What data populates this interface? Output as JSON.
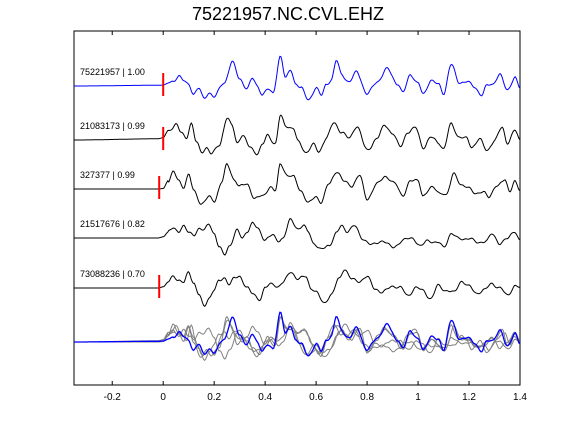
{
  "chart_data": {
    "type": "line",
    "title": "75221957.NC.CVL.EHZ",
    "xlim": [
      -0.35,
      1.4
    ],
    "xticks": [
      -0.2,
      0,
      0.2,
      0.4,
      0.6,
      0.8,
      1,
      1.2,
      1.4
    ],
    "xtick_labels": [
      "-0.2",
      "0",
      "0.2",
      "0.4",
      "0.6",
      "0.8",
      "1",
      "1.2",
      "1.4"
    ],
    "grid": false,
    "pick_time": 0,
    "colors": {
      "reference": "#0000ff",
      "trace": "#000000",
      "overlay": "#808080",
      "pick": "#ff0000"
    },
    "traces": [
      {
        "label": "75221957 | 1.00",
        "color": "reference",
        "pick": true,
        "keypoints": [
          [
            -0.35,
            0
          ],
          [
            -0.02,
            0.03
          ],
          [
            0,
            0.04
          ],
          [
            0.02,
            0.12
          ],
          [
            0.04,
            0.2
          ],
          [
            0.06,
            0.45
          ],
          [
            0.08,
            0.2
          ],
          [
            0.1,
            0.05
          ],
          [
            0.12,
            -0.3
          ],
          [
            0.14,
            -0.1
          ],
          [
            0.16,
            -0.55
          ],
          [
            0.18,
            -0.25
          ],
          [
            0.2,
            -0.45
          ],
          [
            0.24,
            0.15
          ],
          [
            0.27,
            1.0
          ],
          [
            0.3,
            0.3
          ],
          [
            0.33,
            -0.1
          ],
          [
            0.35,
            0.3
          ],
          [
            0.37,
            0.0
          ],
          [
            0.39,
            -0.35
          ],
          [
            0.41,
            -0.15
          ],
          [
            0.43,
            -0.3
          ],
          [
            0.46,
            1.25
          ],
          [
            0.48,
            0.3
          ],
          [
            0.5,
            0.7
          ],
          [
            0.52,
            0.1
          ],
          [
            0.54,
            -0.1
          ],
          [
            0.57,
            -0.55
          ],
          [
            0.6,
            -0.1
          ],
          [
            0.62,
            -0.4
          ],
          [
            0.64,
            0.1
          ],
          [
            0.66,
            0.25
          ],
          [
            0.68,
            1.05
          ],
          [
            0.7,
            0.5
          ],
          [
            0.73,
            0.15
          ],
          [
            0.76,
            0.6
          ],
          [
            0.8,
            -0.35
          ],
          [
            0.84,
            0.2
          ],
          [
            0.88,
            0.7
          ],
          [
            0.92,
            0.1
          ],
          [
            0.94,
            -0.3
          ],
          [
            0.97,
            0.5
          ],
          [
            1.0,
            0.1
          ],
          [
            1.02,
            -0.35
          ],
          [
            1.05,
            0.25
          ],
          [
            1.08,
            0.05
          ],
          [
            1.1,
            -0.3
          ],
          [
            1.13,
            0.9
          ],
          [
            1.16,
            0.15
          ],
          [
            1.19,
            0.2
          ],
          [
            1.22,
            -0.05
          ],
          [
            1.25,
            -0.35
          ],
          [
            1.27,
            0.0
          ],
          [
            1.29,
            0.05
          ],
          [
            1.32,
            0.5
          ],
          [
            1.35,
            -0.2
          ],
          [
            1.38,
            0.4
          ],
          [
            1.4,
            -0.1
          ]
        ]
      },
      {
        "label": "21083173 | 0.99",
        "color": "trace",
        "pick": true,
        "keypoints": [
          [
            -0.35,
            0
          ],
          [
            -0.02,
            0.05
          ],
          [
            0,
            0.1
          ],
          [
            0.02,
            0.4
          ],
          [
            0.05,
            0.65
          ],
          [
            0.07,
            0.3
          ],
          [
            0.09,
            0.1
          ],
          [
            0.11,
            0.7
          ],
          [
            0.13,
            -0.1
          ],
          [
            0.15,
            -0.5
          ],
          [
            0.17,
            -0.3
          ],
          [
            0.19,
            -0.6
          ],
          [
            0.22,
            -0.2
          ],
          [
            0.25,
            0.9
          ],
          [
            0.27,
            0.6
          ],
          [
            0.29,
            -0.1
          ],
          [
            0.31,
            0.2
          ],
          [
            0.34,
            -0.3
          ],
          [
            0.37,
            -0.55
          ],
          [
            0.39,
            -0.2
          ],
          [
            0.41,
            0.2
          ],
          [
            0.44,
            -0.15
          ],
          [
            0.46,
            1.0
          ],
          [
            0.48,
            0.6
          ],
          [
            0.51,
            0.5
          ],
          [
            0.53,
            -0.1
          ],
          [
            0.56,
            -0.5
          ],
          [
            0.59,
            -0.2
          ],
          [
            0.61,
            -0.5
          ],
          [
            0.64,
            0.1
          ],
          [
            0.67,
            0.7
          ],
          [
            0.7,
            0.35
          ],
          [
            0.73,
            0.05
          ],
          [
            0.76,
            0.6
          ],
          [
            0.8,
            -0.45
          ],
          [
            0.84,
            0.1
          ],
          [
            0.87,
            0.6
          ],
          [
            0.9,
            0.3
          ],
          [
            0.93,
            -0.3
          ],
          [
            0.96,
            0.35
          ],
          [
            0.99,
            0.5
          ],
          [
            1.02,
            -0.3
          ],
          [
            1.05,
            0.1
          ],
          [
            1.08,
            -0.1
          ],
          [
            1.1,
            -0.35
          ],
          [
            1.13,
            0.65
          ],
          [
            1.16,
            0.15
          ],
          [
            1.19,
            0.05
          ],
          [
            1.21,
            -0.3
          ],
          [
            1.24,
            0.05
          ],
          [
            1.27,
            -0.45
          ],
          [
            1.3,
            0.0
          ],
          [
            1.33,
            0.5
          ],
          [
            1.35,
            -0.1
          ],
          [
            1.38,
            0.4
          ],
          [
            1.4,
            -0.05
          ]
        ]
      },
      {
        "label": "327377 | 0.99",
        "color": "trace",
        "pick": true,
        "keypoints": [
          [
            -0.35,
            0
          ],
          [
            -0.02,
            0.0
          ],
          [
            0,
            0.02
          ],
          [
            0.02,
            0.35
          ],
          [
            0.04,
            0.7
          ],
          [
            0.06,
            0.35
          ],
          [
            0.08,
            0.1
          ],
          [
            0.1,
            0.6
          ],
          [
            0.12,
            -0.1
          ],
          [
            0.15,
            -0.6
          ],
          [
            0.18,
            -0.35
          ],
          [
            0.2,
            -0.5
          ],
          [
            0.23,
            0.3
          ],
          [
            0.25,
            1.0
          ],
          [
            0.28,
            0.4
          ],
          [
            0.3,
            0.1
          ],
          [
            0.33,
            0.2
          ],
          [
            0.36,
            -0.4
          ],
          [
            0.39,
            -0.3
          ],
          [
            0.42,
            0.1
          ],
          [
            0.44,
            -0.1
          ],
          [
            0.46,
            1.05
          ],
          [
            0.49,
            0.55
          ],
          [
            0.51,
            0.5
          ],
          [
            0.54,
            -0.05
          ],
          [
            0.57,
            -0.6
          ],
          [
            0.6,
            -0.3
          ],
          [
            0.62,
            -0.55
          ],
          [
            0.65,
            0.2
          ],
          [
            0.68,
            0.75
          ],
          [
            0.71,
            0.3
          ],
          [
            0.74,
            0.15
          ],
          [
            0.77,
            0.55
          ],
          [
            0.8,
            -0.4
          ],
          [
            0.84,
            0.2
          ],
          [
            0.87,
            0.55
          ],
          [
            0.91,
            0.2
          ],
          [
            0.94,
            -0.25
          ],
          [
            0.97,
            0.3
          ],
          [
            1.0,
            0.4
          ],
          [
            1.02,
            -0.3
          ],
          [
            1.06,
            0.1
          ],
          [
            1.09,
            -0.2
          ],
          [
            1.11,
            -0.3
          ],
          [
            1.14,
            0.7
          ],
          [
            1.17,
            0.1
          ],
          [
            1.2,
            0.1
          ],
          [
            1.23,
            -0.25
          ],
          [
            1.26,
            -0.1
          ],
          [
            1.28,
            -0.3
          ],
          [
            1.31,
            0.1
          ],
          [
            1.34,
            0.45
          ],
          [
            1.36,
            -0.15
          ],
          [
            1.38,
            0.3
          ],
          [
            1.4,
            0.0
          ]
        ]
      },
      {
        "label": "21517676 | 0.82",
        "color": "trace",
        "pick": false,
        "keypoints": [
          [
            -0.35,
            0
          ],
          [
            -0.02,
            0.0
          ],
          [
            0,
            0.05
          ],
          [
            0.02,
            0.25
          ],
          [
            0.04,
            0.4
          ],
          [
            0.06,
            0.3
          ],
          [
            0.08,
            0.5
          ],
          [
            0.1,
            0.2
          ],
          [
            0.12,
            0.15
          ],
          [
            0.14,
            0.4
          ],
          [
            0.16,
            0.3
          ],
          [
            0.18,
            0.6
          ],
          [
            0.2,
            0.2
          ],
          [
            0.22,
            -0.4
          ],
          [
            0.24,
            -0.7
          ],
          [
            0.26,
            -0.3
          ],
          [
            0.29,
            0.3
          ],
          [
            0.31,
            0.0
          ],
          [
            0.33,
            0.3
          ],
          [
            0.35,
            0.6
          ],
          [
            0.37,
            0.4
          ],
          [
            0.4,
            -0.05
          ],
          [
            0.43,
            0.1
          ],
          [
            0.45,
            -0.1
          ],
          [
            0.47,
            0.0
          ],
          [
            0.5,
            0.75
          ],
          [
            0.53,
            0.4
          ],
          [
            0.55,
            0.5
          ],
          [
            0.57,
            0.25
          ],
          [
            0.59,
            -0.2
          ],
          [
            0.62,
            -0.5
          ],
          [
            0.65,
            -0.3
          ],
          [
            0.68,
            0.2
          ],
          [
            0.7,
            0.5
          ],
          [
            0.72,
            0.3
          ],
          [
            0.75,
            0.5
          ],
          [
            0.78,
            0.0
          ],
          [
            0.82,
            -0.3
          ],
          [
            0.86,
            -0.1
          ],
          [
            0.9,
            -0.4
          ],
          [
            0.94,
            -0.1
          ],
          [
            0.98,
            0.0
          ],
          [
            1.01,
            -0.35
          ],
          [
            1.04,
            -0.1
          ],
          [
            1.08,
            -0.2
          ],
          [
            1.1,
            -0.4
          ],
          [
            1.13,
            0.2
          ],
          [
            1.16,
            -0.05
          ],
          [
            1.2,
            0.0
          ],
          [
            1.23,
            -0.2
          ],
          [
            1.27,
            -0.1
          ],
          [
            1.29,
            0.15
          ],
          [
            1.32,
            -0.2
          ],
          [
            1.35,
            -0.05
          ],
          [
            1.38,
            0.3
          ],
          [
            1.4,
            -0.1
          ]
        ]
      },
      {
        "label": "73088236 | 0.70",
        "color": "trace",
        "pick": true,
        "keypoints": [
          [
            -0.35,
            0
          ],
          [
            -0.02,
            0.0
          ],
          [
            0,
            0.05
          ],
          [
            0.02,
            0.25
          ],
          [
            0.04,
            0.55
          ],
          [
            0.06,
            0.3
          ],
          [
            0.08,
            0.2
          ],
          [
            0.1,
            0.7
          ],
          [
            0.12,
            0.2
          ],
          [
            0.14,
            -0.3
          ],
          [
            0.16,
            -0.75
          ],
          [
            0.18,
            -0.4
          ],
          [
            0.2,
            -0.1
          ],
          [
            0.22,
            0.3
          ],
          [
            0.24,
            0.45
          ],
          [
            0.26,
            0.15
          ],
          [
            0.28,
            0.4
          ],
          [
            0.3,
            0.5
          ],
          [
            0.33,
            0.0
          ],
          [
            0.35,
            -0.25
          ],
          [
            0.38,
            -0.45
          ],
          [
            0.4,
            0.0
          ],
          [
            0.43,
            0.2
          ],
          [
            0.45,
            0.05
          ],
          [
            0.47,
            0.2
          ],
          [
            0.5,
            0.7
          ],
          [
            0.53,
            0.35
          ],
          [
            0.56,
            0.5
          ],
          [
            0.58,
            0.0
          ],
          [
            0.6,
            -0.2
          ],
          [
            0.63,
            -0.6
          ],
          [
            0.66,
            -0.3
          ],
          [
            0.69,
            0.4
          ],
          [
            0.71,
            0.8
          ],
          [
            0.74,
            0.35
          ],
          [
            0.77,
            0.3
          ],
          [
            0.8,
            0.45
          ],
          [
            0.83,
            0.0
          ],
          [
            0.86,
            -0.2
          ],
          [
            0.9,
            0.1
          ],
          [
            0.93,
            0.0
          ],
          [
            0.96,
            -0.3
          ],
          [
            0.99,
            0.0
          ],
          [
            1.02,
            -0.1
          ],
          [
            1.05,
            -0.45
          ],
          [
            1.08,
            0.1
          ],
          [
            1.11,
            -0.1
          ],
          [
            1.14,
            -0.2
          ],
          [
            1.17,
            0.3
          ],
          [
            1.2,
            0.05
          ],
          [
            1.23,
            -0.2
          ],
          [
            1.26,
            -0.1
          ],
          [
            1.29,
            0.2
          ],
          [
            1.32,
            0.0
          ],
          [
            1.35,
            -0.3
          ],
          [
            1.38,
            0.1
          ],
          [
            1.4,
            0.0
          ]
        ]
      }
    ]
  }
}
